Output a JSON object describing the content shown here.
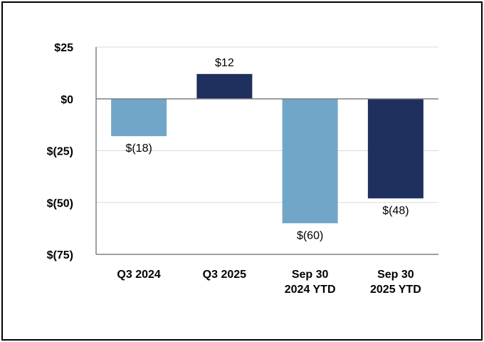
{
  "chart_data": {
    "type": "bar",
    "categories": [
      [
        "Q3 2024"
      ],
      [
        "Q3 2025"
      ],
      [
        "Sep 30",
        "2024 YTD"
      ],
      [
        "Sep 30",
        "2025 YTD"
      ]
    ],
    "values": [
      -18,
      12,
      -60,
      -48
    ],
    "data_labels": [
      "$(18)",
      "$12",
      "$(60)",
      "$(48)"
    ],
    "bar_colors": [
      "#72a6c9",
      "#1f2f5e",
      "#72a6c9",
      "#1f2f5e"
    ],
    "yticks": [
      25,
      0,
      -25,
      -50,
      -75
    ],
    "ytick_labels": [
      "$25",
      "$0",
      "$(25)",
      "$(50)",
      "$(75)"
    ],
    "ylim": [
      -75,
      25
    ],
    "grid": true,
    "legend": "none",
    "title": "",
    "xlabel": "",
    "ylabel": "",
    "gridline_color": "#d9d9d9",
    "axis_color": "#808080"
  }
}
